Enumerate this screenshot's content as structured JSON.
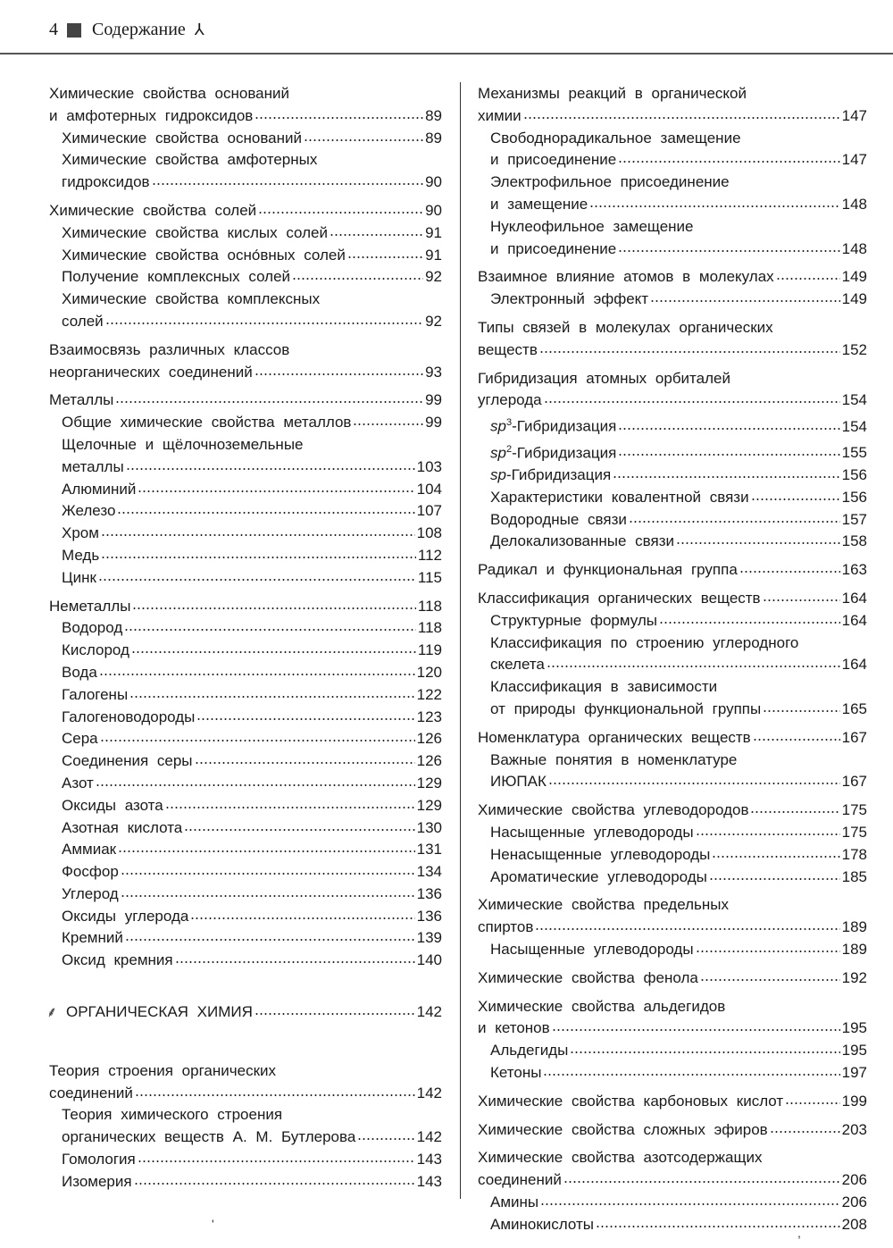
{
  "header": {
    "page_number": "4",
    "title": "Содержание",
    "ornament": "⅄"
  },
  "left": [
    {
      "entries": [
        {
          "level": 0,
          "pre": "Химические свойства оснований",
          "title": "и амфотерных гидроксидов",
          "page": "89"
        },
        {
          "level": 1,
          "title": "Химические свойства оснований",
          "page": "89"
        },
        {
          "level": 1,
          "pre": "Химические свойства амфотерных",
          "title": "гидроксидов",
          "page": "90"
        }
      ]
    },
    {
      "entries": [
        {
          "level": 0,
          "title": "Химические свойства солей",
          "page": "90"
        },
        {
          "level": 1,
          "title": "Химические свойства кислых солей",
          "page": "91"
        },
        {
          "level": 1,
          "title": "Химические свойства осно́вных солей",
          "page": "91"
        },
        {
          "level": 1,
          "title": "Получение комплексных солей",
          "page": "92"
        },
        {
          "level": 1,
          "pre": "Химические свойства комплексных",
          "title": "солей",
          "page": "92"
        }
      ]
    },
    {
      "entries": [
        {
          "level": 0,
          "pre": "Взаимосвязь различных классов",
          "title": "неорганических соединений",
          "page": "93"
        }
      ]
    },
    {
      "entries": [
        {
          "level": 0,
          "title": "Металлы",
          "page": "99"
        },
        {
          "level": 1,
          "title": "Общие химические свойства металлов",
          "page": "99"
        },
        {
          "level": 1,
          "pre": "Щелочные и щёлочноземельные",
          "title": "металлы",
          "page": "103"
        },
        {
          "level": 1,
          "title": "Алюминий",
          "page": "104"
        },
        {
          "level": 1,
          "title": "Железо",
          "page": "107"
        },
        {
          "level": 1,
          "title": "Хром",
          "page": "108"
        },
        {
          "level": 1,
          "title": "Медь",
          "page": "112"
        },
        {
          "level": 1,
          "title": "Цинк",
          "page": "115"
        }
      ]
    },
    {
      "entries": [
        {
          "level": 0,
          "title": "Неметаллы",
          "page": "118"
        },
        {
          "level": 1,
          "title": "Водород",
          "page": "118"
        },
        {
          "level": 1,
          "title": "Кислород",
          "page": "119"
        },
        {
          "level": 1,
          "title": "Вода",
          "page": "120"
        },
        {
          "level": 1,
          "title": "Галогены",
          "page": "122"
        },
        {
          "level": 1,
          "title": "Галогеноводороды",
          "page": "123"
        },
        {
          "level": 1,
          "title": "Сера",
          "page": "126"
        },
        {
          "level": 1,
          "title": "Соединения серы",
          "page": "126"
        },
        {
          "level": 1,
          "title": "Азот",
          "page": "129"
        },
        {
          "level": 1,
          "title": "Оксиды азота",
          "page": "129"
        },
        {
          "level": 1,
          "title": "Азотная кислота",
          "page": "130"
        },
        {
          "level": 1,
          "title": "Аммиак",
          "page": "131"
        },
        {
          "level": 1,
          "title": "Фосфор",
          "page": "134"
        },
        {
          "level": 1,
          "title": "Углерод",
          "page": "136"
        },
        {
          "level": 1,
          "title": "Оксиды углерода",
          "page": "136"
        },
        {
          "level": 1,
          "title": "Кремний",
          "page": "139"
        },
        {
          "level": 1,
          "title": "Оксид кремния",
          "page": "140"
        }
      ]
    },
    {
      "section": {
        "icon": "tree-icon",
        "title": "ОРГАНИЧЕСКАЯ ХИМИЯ",
        "page": "142"
      }
    },
    {
      "entries": [
        {
          "level": 0,
          "pre": "Теория строения органических",
          "title": "соединений",
          "page": "142"
        },
        {
          "level": 1,
          "pre": "Теория химического строения",
          "title": "органических веществ А. М. Бутлерова",
          "page": "142"
        },
        {
          "level": 1,
          "title": "Гомология",
          "page": "143"
        },
        {
          "level": 1,
          "title": "Изомерия",
          "page": "143"
        }
      ]
    }
  ],
  "right": [
    {
      "entries": [
        {
          "level": 0,
          "pre": "Механизмы реакций в органической",
          "title": "химии",
          "page": "147"
        },
        {
          "level": 1,
          "pre": "Свободнорадикальное замещение",
          "title": "и присоединение",
          "page": "147"
        },
        {
          "level": 1,
          "pre": "Электрофильное присоединение",
          "title": "и замещение",
          "page": "148"
        },
        {
          "level": 1,
          "pre": "Нуклеофильное замещение",
          "title": "и присоединение",
          "page": "148"
        }
      ]
    },
    {
      "entries": [
        {
          "level": 0,
          "title": "Взаимное влияние атомов в молекулах",
          "page": "149"
        },
        {
          "level": 1,
          "title": "Электронный эффект",
          "page": "149"
        }
      ]
    },
    {
      "entries": [
        {
          "level": 0,
          "pre": "Типы связей в молекулах органических",
          "title": "веществ",
          "page": "152"
        }
      ]
    },
    {
      "entries": [
        {
          "level": 0,
          "pre": "Гибридизация атомных орбиталей",
          "title": "углерода",
          "page": "154"
        },
        {
          "level": 1,
          "em": "sp",
          "sup": "3",
          "title": "-Гибридизация",
          "page": "154"
        },
        {
          "level": 1,
          "em": "sp",
          "sup": "2",
          "title": "-Гибридизация",
          "page": "155"
        },
        {
          "level": 1,
          "em": "sp",
          "title": "-Гибридизация",
          "page": "156"
        },
        {
          "level": 1,
          "title": "Характеристики ковалентной связи",
          "page": "156"
        },
        {
          "level": 1,
          "title": "Водородные связи",
          "page": "157"
        },
        {
          "level": 1,
          "title": "Делокализованные связи",
          "page": "158"
        }
      ]
    },
    {
      "entries": [
        {
          "level": 0,
          "title": "Радикал и функциональная группа",
          "page": "163"
        }
      ]
    },
    {
      "entries": [
        {
          "level": 0,
          "title": "Классификация органических веществ",
          "page": "164"
        },
        {
          "level": 1,
          "title": "Структурные формулы",
          "page": "164"
        },
        {
          "level": 1,
          "pre": "Классификация по строению углеродного",
          "title": "скелета",
          "page": "164"
        },
        {
          "level": 1,
          "pre": "Классификация в зависимости",
          "title": "от природы функциональной группы",
          "page": "165"
        }
      ]
    },
    {
      "entries": [
        {
          "level": 0,
          "title": "Номенклатура органических веществ",
          "page": "167"
        },
        {
          "level": 1,
          "pre": "Важные понятия в номенклатуре",
          "title": "ИЮПАК",
          "page": "167"
        }
      ]
    },
    {
      "entries": [
        {
          "level": 0,
          "title": "Химические свойства углеводородов",
          "page": "175"
        },
        {
          "level": 1,
          "title": "Насыщенные углеводороды",
          "page": "175"
        },
        {
          "level": 1,
          "title": "Ненасыщенные углеводороды",
          "page": "178"
        },
        {
          "level": 1,
          "title": "Ароматические углеводороды",
          "page": "185"
        }
      ]
    },
    {
      "entries": [
        {
          "level": 0,
          "pre": "Химические свойства предельных",
          "title": "спиртов",
          "page": "189"
        },
        {
          "level": 1,
          "title": "Насыщенные углеводороды",
          "page": "189"
        }
      ]
    },
    {
      "entries": [
        {
          "level": 0,
          "title": "Химические свойства фенола",
          "page": "192"
        }
      ]
    },
    {
      "entries": [
        {
          "level": 0,
          "pre": "Химические свойства альдегидов",
          "title": "и кетонов",
          "page": "195"
        },
        {
          "level": 1,
          "title": "Альдегиды",
          "page": "195"
        },
        {
          "level": 1,
          "title": "Кетоны",
          "page": "197"
        }
      ]
    },
    {
      "entries": [
        {
          "level": 0,
          "title": "Химические свойства карбоновых кислот",
          "page": "199"
        }
      ]
    },
    {
      "entries": [
        {
          "level": 0,
          "title": "Химические свойства сложных эфиров",
          "page": "203"
        }
      ]
    },
    {
      "entries": [
        {
          "level": 0,
          "pre": "Химические свойства азотсодержащих",
          "title": "соединений",
          "page": "206"
        },
        {
          "level": 1,
          "title": "Амины",
          "page": "206"
        },
        {
          "level": 1,
          "title": "Аминокислоты",
          "page": "208"
        }
      ]
    }
  ]
}
